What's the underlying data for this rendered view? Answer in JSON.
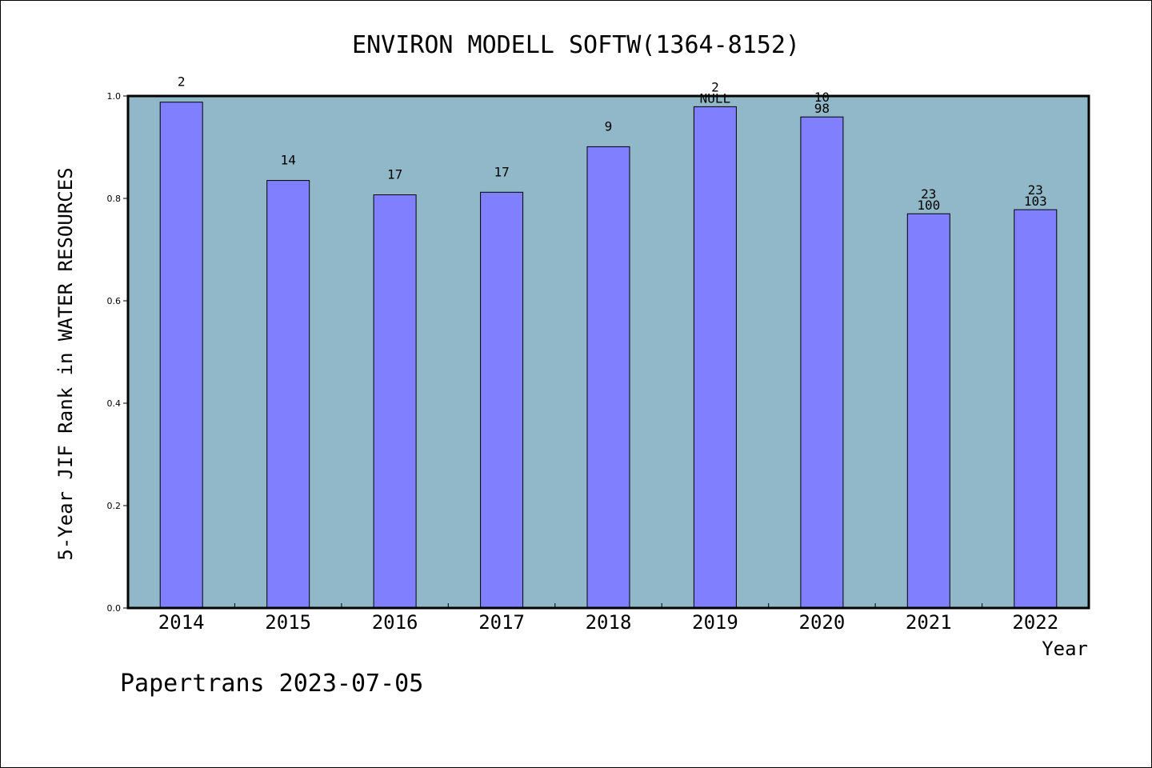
{
  "chart_data": {
    "type": "bar",
    "title": "ENVIRON MODELL SOFTW(1364-8152)",
    "xlabel": "Year",
    "ylabel": "5-Year JIF Rank in WATER RESOURCES",
    "ylim": [
      0,
      1.0
    ],
    "yticks": [
      "0.0",
      "0.2",
      "0.4",
      "0.6",
      "0.8",
      "1.0"
    ],
    "grid": false,
    "categories": [
      "2014",
      "2015",
      "2016",
      "2017",
      "2018",
      "2019",
      "2020",
      "2021",
      "2022"
    ],
    "values": [
      0.988,
      0.835,
      0.807,
      0.812,
      0.901,
      0.979,
      0.959,
      0.77,
      0.778
    ],
    "rank_labels": [
      "2",
      "14",
      "17",
      "17",
      "9",
      "2",
      "10",
      "23",
      "23"
    ],
    "total_labels": [
      "",
      "",
      "",
      "",
      "",
      "NULL",
      "98",
      "100",
      "103"
    ],
    "colors": {
      "bar": "#8080ff",
      "plot_bg": "#90b8c8",
      "bar_edge": "#000000"
    }
  },
  "footer": "Papertrans 2023-07-05"
}
